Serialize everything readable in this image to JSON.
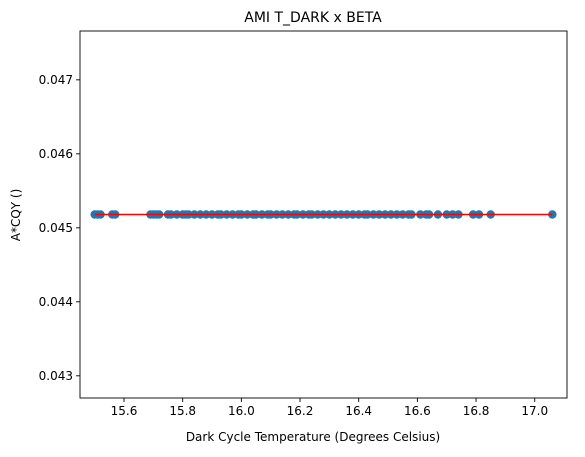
{
  "chart_data": {
    "type": "scatter",
    "title": "AMI T_DARK x BETA",
    "xlabel": "Dark Cycle Temperature (Degrees Celsius)",
    "ylabel": "A*CQY ()",
    "xlim": [
      15.45,
      17.11
    ],
    "ylim": [
      0.0427,
      0.04766
    ],
    "xticks": [
      15.6,
      15.8,
      16.0,
      16.2,
      16.4,
      16.6,
      16.8,
      17.0
    ],
    "xtick_labels": [
      "15.6",
      "15.8",
      "16.0",
      "16.2",
      "16.4",
      "16.6",
      "16.8",
      "17.0"
    ],
    "yticks": [
      0.043,
      0.044,
      0.045,
      0.046,
      0.047
    ],
    "ytick_labels": [
      "0.043",
      "0.044",
      "0.045",
      "0.046",
      "0.047"
    ],
    "grid": false,
    "legend": "none",
    "series": [
      {
        "kind": "scatter",
        "color": "#1f77b4",
        "marker": "circle",
        "x": [
          15.5,
          15.51,
          15.52,
          15.56,
          15.57,
          15.69,
          15.7,
          15.71,
          15.72,
          15.75,
          15.76,
          15.78,
          15.8,
          15.81,
          15.82,
          15.84,
          15.86,
          15.88,
          15.9,
          15.92,
          15.93,
          15.95,
          15.97,
          15.99,
          16.0,
          16.02,
          16.04,
          16.05,
          16.07,
          16.09,
          16.1,
          16.12,
          16.14,
          16.16,
          16.18,
          16.19,
          16.21,
          16.23,
          16.24,
          16.26,
          16.28,
          16.3,
          16.32,
          16.34,
          16.36,
          16.38,
          16.4,
          16.42,
          16.43,
          16.45,
          16.47,
          16.49,
          16.51,
          16.53,
          16.55,
          16.57,
          16.58,
          16.61,
          16.63,
          16.64,
          16.67,
          16.7,
          16.72,
          16.74,
          16.79,
          16.81,
          16.85,
          17.06
        ],
        "y": [
          0.04518,
          0.04518,
          0.04518,
          0.04518,
          0.04518,
          0.04518,
          0.04518,
          0.04518,
          0.04518,
          0.04518,
          0.04518,
          0.04518,
          0.04518,
          0.04518,
          0.04518,
          0.04518,
          0.04518,
          0.04518,
          0.04518,
          0.04518,
          0.04518,
          0.04518,
          0.04518,
          0.04518,
          0.04518,
          0.04518,
          0.04518,
          0.04518,
          0.04518,
          0.04518,
          0.04518,
          0.04518,
          0.04518,
          0.04518,
          0.04518,
          0.04518,
          0.04518,
          0.04518,
          0.04518,
          0.04518,
          0.04518,
          0.04518,
          0.04518,
          0.04518,
          0.04518,
          0.04518,
          0.04518,
          0.04518,
          0.04518,
          0.04518,
          0.04518,
          0.04518,
          0.04518,
          0.04518,
          0.04518,
          0.04518,
          0.04518,
          0.04518,
          0.04518,
          0.04518,
          0.04518,
          0.04518,
          0.04518,
          0.04518,
          0.04518,
          0.04518,
          0.04518,
          0.04518
        ]
      },
      {
        "kind": "line",
        "color": "#ff0000",
        "x": [
          15.5,
          17.06
        ],
        "y": [
          0.04518,
          0.04518
        ]
      }
    ]
  }
}
